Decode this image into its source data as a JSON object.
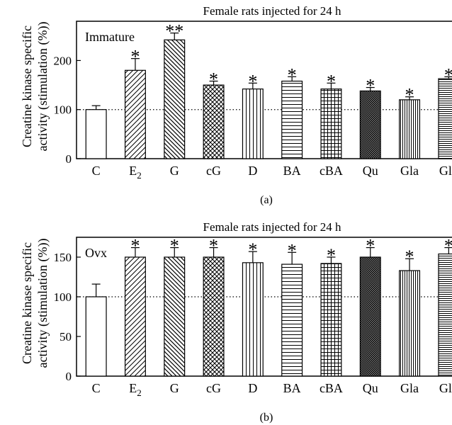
{
  "chart_data": [
    {
      "type": "bar",
      "panel_label": "(a)",
      "title": "Female rats injected for 24 h",
      "ylabel_line1": "Creatine kinase specific",
      "ylabel_line2": "activity (stimulation (%))",
      "group_label": "Immature",
      "categories": [
        "C",
        "E2",
        "G",
        "cG",
        "D",
        "BA",
        "cBA",
        "Qu",
        "Gla",
        "Glb"
      ],
      "values": [
        100,
        180,
        242,
        150,
        142,
        158,
        142,
        138,
        120,
        163
      ],
      "errors": [
        8,
        24,
        14,
        8,
        12,
        9,
        12,
        7,
        6,
        4
      ],
      "significance": [
        "",
        "*",
        "**",
        "*",
        "*",
        "*",
        "*",
        "*",
        "*",
        "*"
      ],
      "patterns": [
        "none",
        "diag-fwd",
        "diag-back",
        "crosshatch",
        "vertical",
        "horizontal",
        "grid",
        "dots",
        "vertical-dense",
        "horizontal-dense"
      ],
      "ylim": [
        0,
        280
      ],
      "yticks": [
        0,
        100,
        200
      ],
      "reference_line": 100
    },
    {
      "type": "bar",
      "panel_label": "(b)",
      "title": "Female rats injected for 24 h",
      "ylabel_line1": "Creatine kinase specific",
      "ylabel_line2": "activity (stimulation (%))",
      "group_label": "Ovx",
      "categories": [
        "C",
        "E2",
        "G",
        "cG",
        "D",
        "BA",
        "cBA",
        "Qu",
        "Gla",
        "Glb"
      ],
      "values": [
        100,
        150,
        150,
        150,
        143,
        141,
        142,
        150,
        133,
        154
      ],
      "errors": [
        16,
        12,
        12,
        12,
        14,
        15,
        8,
        12,
        15,
        8
      ],
      "significance": [
        "",
        "*",
        "*",
        "*",
        "*",
        "*",
        "*",
        "*",
        "*",
        "*"
      ],
      "patterns": [
        "none",
        "diag-fwd",
        "diag-back",
        "crosshatch",
        "vertical",
        "horizontal",
        "grid",
        "dots",
        "vertical-dense",
        "horizontal-dense"
      ],
      "ylim": [
        0,
        175
      ],
      "yticks": [
        0,
        50,
        100,
        150
      ],
      "reference_line": 100
    }
  ]
}
